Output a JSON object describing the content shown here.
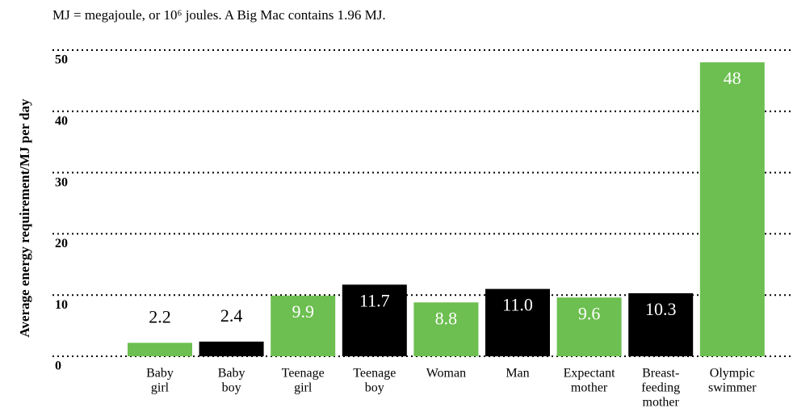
{
  "chart_data": {
    "type": "bar",
    "subtitle": "MJ = megajoule, or 10⁶ joules. A Big Mac contains 1.96 MJ.",
    "y_label": "Average energy requirement/MJ per day",
    "categories": [
      [
        "Baby",
        "girl"
      ],
      [
        "Baby",
        "boy"
      ],
      [
        "Teenage",
        "girl"
      ],
      [
        "Teenage",
        "boy"
      ],
      [
        "Woman"
      ],
      [
        "Man"
      ],
      [
        "Expectant",
        "mother"
      ],
      [
        "Breast-",
        "feeding",
        "mother"
      ],
      [
        "Olympic",
        "swimmer"
      ]
    ],
    "values": [
      2.2,
      2.4,
      9.9,
      11.7,
      8.8,
      11.0,
      9.6,
      10.3,
      48
    ],
    "value_labels": [
      "2.2",
      "2.4",
      "9.9",
      "11.7",
      "8.8",
      "11.0",
      "9.6",
      "10.3",
      "48"
    ],
    "colors": [
      "#6cbf50",
      "#000000",
      "#6cbf50",
      "#000000",
      "#6cbf50",
      "#000000",
      "#6cbf50",
      "#000000",
      "#6cbf50"
    ],
    "ylim": [
      0,
      50
    ],
    "yticks": [
      0,
      10,
      20,
      30,
      40,
      50
    ],
    "grid": true
  }
}
